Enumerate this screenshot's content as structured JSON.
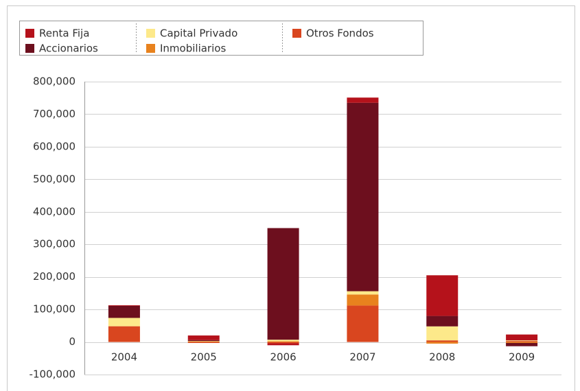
{
  "chart_data": {
    "type": "bar",
    "stacked": true,
    "categories": [
      "2004",
      "2005",
      "2006",
      "2007",
      "2008",
      "2009"
    ],
    "series": [
      {
        "name": "Otros Fondos",
        "color": "#d9461f",
        "values": [
          48000,
          -3000,
          -4000,
          112000,
          5000,
          3000
        ]
      },
      {
        "name": "Inmobiliarios",
        "color": "#e8821e",
        "values": [
          1000,
          2000,
          2000,
          34000,
          -5000,
          -3000
        ]
      },
      {
        "name": "Capital Privado",
        "color": "#fde98a",
        "values": [
          25000,
          1000,
          5000,
          10000,
          43000,
          2000
        ]
      },
      {
        "name": "Accionarios",
        "color": "#6d0f1e",
        "values": [
          37000,
          3000,
          343000,
          579000,
          32000,
          -10000
        ]
      },
      {
        "name": "Renta Fija",
        "color": "#b5121b",
        "values": [
          2000,
          14000,
          -6000,
          16000,
          125000,
          18000
        ]
      }
    ],
    "ylim": [
      -100000,
      800000
    ],
    "yticks": [
      {
        "value": -100000,
        "label": "-100,000"
      },
      0,
      {
        "value": 100000,
        "label": "100,000"
      },
      {
        "value": 200000,
        "label": "200,000"
      },
      {
        "value": 300000,
        "label": "300,000"
      },
      {
        "value": 400000,
        "label": "400,000"
      },
      {
        "value": 500000,
        "label": "500,000"
      },
      {
        "value": 600000,
        "label": "600,000"
      },
      {
        "value": 700000,
        "label": "700,000"
      },
      {
        "value": 800000,
        "label": "800,000"
      }
    ],
    "grid": true
  }
}
